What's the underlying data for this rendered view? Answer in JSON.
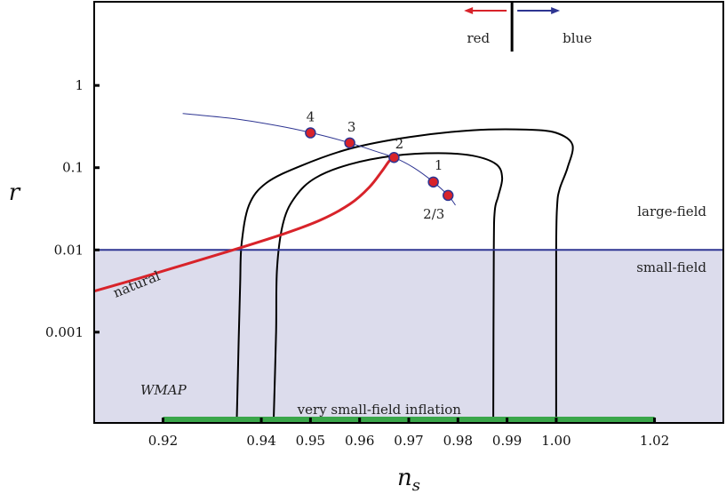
{
  "chart_data": {
    "type": "line",
    "title": "",
    "xlabel": "n",
    "xlabel_sub": "s",
    "ylabel": "r",
    "x_scale": "linear",
    "y_scale": "log",
    "xlim": [
      0.906,
      1.034
    ],
    "ylim": [
      7.88e-05,
      10.4
    ],
    "x_ticks": [
      {
        "value": 0.92,
        "label": "0.92"
      },
      {
        "value": 0.94,
        "label": "0.94"
      },
      {
        "value": 0.95,
        "label": "0.95"
      },
      {
        "value": 0.96,
        "label": "0.96"
      },
      {
        "value": 0.97,
        "label": "0.97"
      },
      {
        "value": 0.98,
        "label": "0.98"
      },
      {
        "value": 0.99,
        "label": "0.99"
      },
      {
        "value": 1.0,
        "label": "1.00"
      },
      {
        "value": 1.02,
        "label": "1.02"
      }
    ],
    "y_ticks": [
      {
        "value": 1,
        "label": "1"
      },
      {
        "value": 0.1,
        "label": "0.1"
      },
      {
        "value": 0.01,
        "label": "0.01"
      },
      {
        "value": 0.001,
        "label": "0.001"
      }
    ],
    "regions": {
      "small_field_shade_below_r": 0.01,
      "shade_color": "#dcdcec",
      "boundary_color": "#2e3592",
      "large_field_label": "large-field",
      "small_field_label": "small-field",
      "very_small_field_label": "very small-field inflation",
      "very_small_field_bar": {
        "x_range": [
          0.92,
          1.02
        ],
        "color": "#3aa64a"
      }
    },
    "scale_divider": {
      "x": 0.991,
      "red_label": "red",
      "blue_label": "blue",
      "red_color": "#d8232a",
      "blue_color": "#2e3592"
    },
    "wmap": {
      "label": "WMAP",
      "color": "#000000",
      "outer_contour": [
        [
          0.935,
          8e-05
        ],
        [
          0.9354,
          0.0008
        ],
        [
          0.9357,
          0.004
        ],
        [
          0.936,
          0.012
        ],
        [
          0.9375,
          0.035
        ],
        [
          0.941,
          0.065
        ],
        [
          0.948,
          0.105
        ],
        [
          0.958,
          0.17
        ],
        [
          0.97,
          0.235
        ],
        [
          0.983,
          0.285
        ],
        [
          0.994,
          0.29
        ],
        [
          1.0,
          0.265
        ],
        [
          1.0033,
          0.19
        ],
        [
          1.0023,
          0.1
        ],
        [
          1.0007,
          0.055
        ],
        [
          1.0002,
          0.035
        ],
        [
          1.0,
          0.01
        ],
        [
          1.0,
          8e-05
        ]
      ],
      "inner_contour": [
        [
          0.9425,
          8e-05
        ],
        [
          0.943,
          0.001
        ],
        [
          0.9432,
          0.006
        ],
        [
          0.9445,
          0.022
        ],
        [
          0.947,
          0.045
        ],
        [
          0.951,
          0.075
        ],
        [
          0.958,
          0.11
        ],
        [
          0.967,
          0.14
        ],
        [
          0.976,
          0.15
        ],
        [
          0.983,
          0.14
        ],
        [
          0.9878,
          0.11
        ],
        [
          0.989,
          0.075
        ],
        [
          0.9882,
          0.045
        ],
        [
          0.9875,
          0.03
        ],
        [
          0.9873,
          0.01
        ],
        [
          0.9872,
          8e-05
        ]
      ]
    },
    "natural": {
      "label": "natural",
      "color": "#d8232a",
      "points": [
        [
          0.906,
          0.00315
        ],
        [
          0.915,
          0.0045
        ],
        [
          0.925,
          0.0068
        ],
        [
          0.935,
          0.0103
        ],
        [
          0.945,
          0.016
        ],
        [
          0.952,
          0.023
        ],
        [
          0.958,
          0.036
        ],
        [
          0.962,
          0.058
        ],
        [
          0.9645,
          0.09
        ],
        [
          0.966,
          0.12
        ],
        [
          0.967,
          0.135
        ]
      ]
    },
    "monomial": {
      "color": "#2e3592",
      "points": [
        [
          0.924,
          0.455
        ],
        [
          0.935,
          0.39
        ],
        [
          0.945,
          0.31
        ],
        [
          0.952,
          0.25
        ],
        [
          0.958,
          0.2
        ],
        [
          0.963,
          0.16
        ],
        [
          0.967,
          0.133
        ],
        [
          0.971,
          0.1
        ],
        [
          0.975,
          0.067
        ],
        [
          0.978,
          0.046
        ],
        [
          0.9795,
          0.035
        ]
      ],
      "markers": [
        {
          "label": "4",
          "x": 0.95,
          "y": 0.265
        },
        {
          "label": "3",
          "x": 0.958,
          "y": 0.2
        },
        {
          "label": "2",
          "x": 0.967,
          "y": 0.133
        },
        {
          "label": "1",
          "x": 0.975,
          "y": 0.067
        },
        {
          "label": "2/3",
          "x": 0.978,
          "y": 0.046
        }
      ],
      "marker_fill": "#d8232a",
      "marker_stroke": "#2e3592"
    }
  }
}
